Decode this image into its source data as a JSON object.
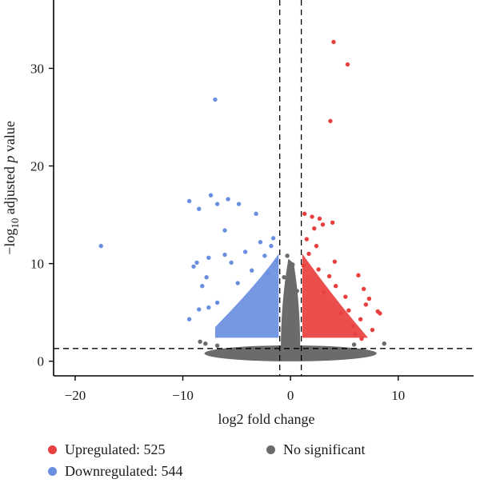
{
  "chart_data": {
    "type": "scatter",
    "xlabel": "log2 fold change",
    "ylabel_parts": {
      "prefix": "−log",
      "sub": "10",
      "mid": " adjusted ",
      "italic": "p",
      "suffix": " value"
    },
    "xlim": [
      -22,
      17
    ],
    "ylim": [
      -1.5,
      37
    ],
    "x_ticks": [
      -20,
      -10,
      0,
      10
    ],
    "x_tick_labels": [
      "−20",
      "−10",
      "0",
      "10"
    ],
    "y_ticks": [
      0,
      10,
      20,
      30
    ],
    "y_tick_labels": [
      "0",
      "10",
      "20",
      "30"
    ],
    "thresholds": {
      "log2fc": [
        -1,
        1
      ],
      "neg_log10_padj": 1.3
    },
    "grid": false,
    "legend_position": "bottom",
    "colors": {
      "up": "#e8403f",
      "down": "#6a8fe0",
      "ns": "#6b6b6b"
    },
    "legend": [
      {
        "key": "up",
        "label": "Upregulated: 525"
      },
      {
        "key": "down",
        "label": "Downregulated: 544"
      },
      {
        "key": "ns",
        "label": "No significant"
      }
    ],
    "series": [
      {
        "key": "up",
        "points": [
          [
            4.0,
            32.7
          ],
          [
            5.3,
            30.4
          ],
          [
            3.7,
            24.6
          ],
          [
            3.9,
            14.2
          ],
          [
            1.3,
            15.1
          ],
          [
            2.0,
            14.8
          ],
          [
            2.7,
            14.6
          ],
          [
            2.2,
            13.6
          ],
          [
            3.0,
            14.0
          ],
          [
            4.1,
            10.2
          ],
          [
            6.3,
            8.8
          ],
          [
            6.8,
            7.4
          ],
          [
            7.0,
            5.8
          ],
          [
            7.3,
            6.4
          ],
          [
            8.1,
            5.1
          ],
          [
            8.3,
            4.9
          ],
          [
            6.5,
            4.3
          ],
          [
            5.1,
            6.6
          ],
          [
            5.4,
            5.2
          ],
          [
            4.7,
            4.9
          ],
          [
            6.0,
            2.8
          ],
          [
            6.6,
            2.3
          ],
          [
            7.6,
            3.2
          ],
          [
            4.2,
            7.7
          ],
          [
            3.6,
            8.7
          ],
          [
            2.6,
            9.4
          ],
          [
            3.1,
            7.1
          ],
          [
            1.5,
            12.5
          ],
          [
            1.7,
            11.0
          ],
          [
            2.4,
            11.8
          ],
          [
            1.2,
            9.8
          ],
          [
            5.8,
            3.6
          ]
        ]
      },
      {
        "key": "down",
        "points": [
          [
            -17.6,
            11.8
          ],
          [
            -7.0,
            26.8
          ],
          [
            -9.4,
            16.4
          ],
          [
            -7.4,
            17.0
          ],
          [
            -6.8,
            16.1
          ],
          [
            -5.8,
            16.6
          ],
          [
            -4.8,
            16.1
          ],
          [
            -3.2,
            15.1
          ],
          [
            -6.1,
            13.4
          ],
          [
            -8.5,
            15.6
          ],
          [
            -9.0,
            9.7
          ],
          [
            -8.7,
            10.1
          ],
          [
            -7.6,
            10.6
          ],
          [
            -7.8,
            8.6
          ],
          [
            -8.2,
            7.7
          ],
          [
            -6.1,
            10.9
          ],
          [
            -5.5,
            10.1
          ],
          [
            -4.2,
            11.2
          ],
          [
            -2.8,
            12.2
          ],
          [
            -2.4,
            10.8
          ],
          [
            -1.8,
            11.8
          ],
          [
            -1.3,
            10.3
          ],
          [
            -9.4,
            4.3
          ],
          [
            -8.5,
            5.3
          ],
          [
            -7.6,
            5.5
          ],
          [
            -6.8,
            6.0
          ],
          [
            -3.6,
            9.3
          ],
          [
            -2.1,
            9.0
          ],
          [
            -4.9,
            8.0
          ],
          [
            -1.6,
            12.6
          ]
        ]
      },
      {
        "key": "ns",
        "points": [
          [
            8.7,
            1.8
          ],
          [
            5.9,
            1.7
          ],
          [
            -7.9,
            1.8
          ],
          [
            -8.4,
            2.0
          ],
          [
            -6.8,
            1.6
          ],
          [
            -0.3,
            10.8
          ],
          [
            0.2,
            9.9
          ],
          [
            0.6,
            7.2
          ],
          [
            -0.6,
            8.6
          ],
          [
            -0.2,
            6.1
          ],
          [
            0.3,
            5.3
          ],
          [
            -0.4,
            4.5
          ]
        ]
      }
    ]
  }
}
